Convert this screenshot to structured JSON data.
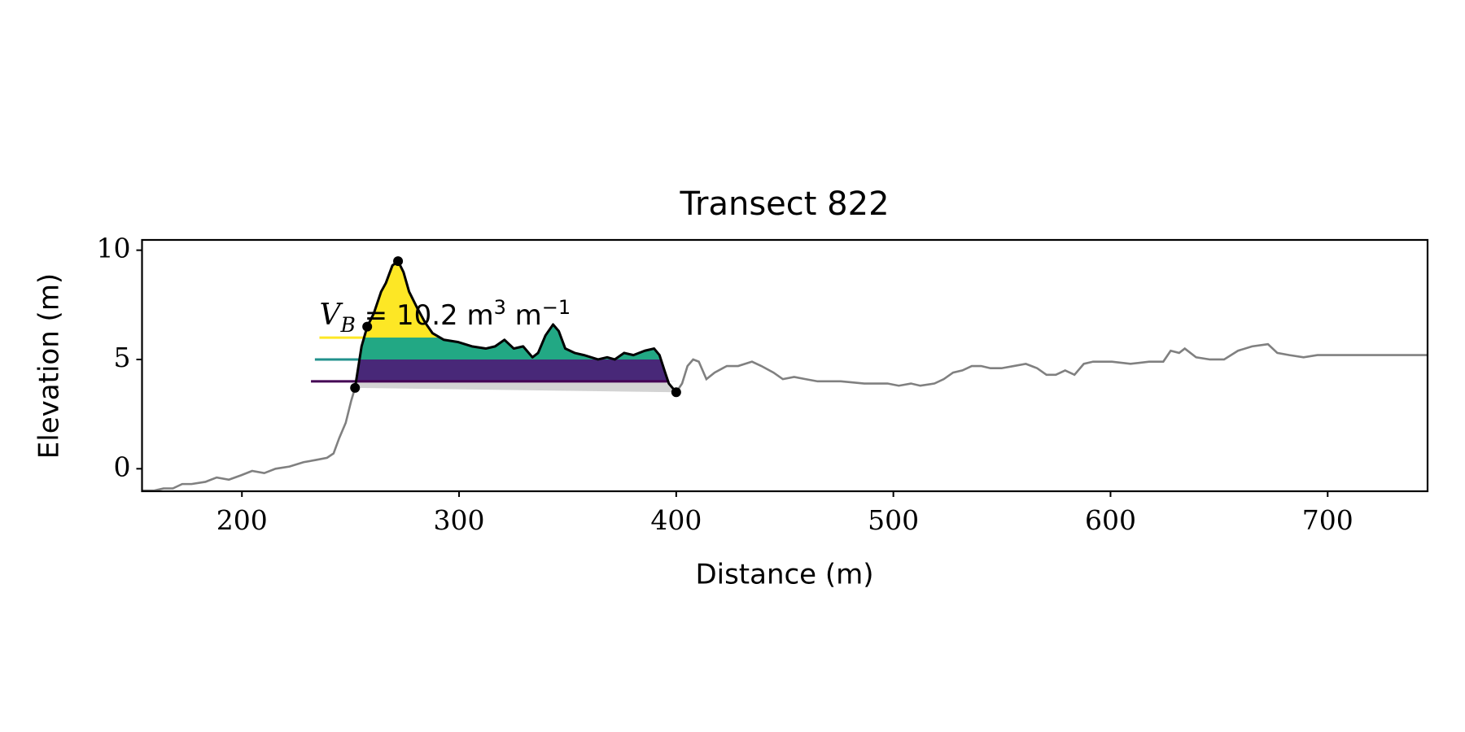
{
  "chart_data": {
    "type": "line",
    "title": "Transect 822",
    "xlabel": "Distance (m)",
    "ylabel": "Elevation (m)",
    "annotation": [
      "V",
      "B",
      " = 10.2 m",
      "3",
      " m",
      "−1"
    ],
    "xlim": [
      154,
      746
    ],
    "ylim": [
      -1.03,
      10.47
    ],
    "xticks": [
      200,
      300,
      400,
      500,
      600,
      700
    ],
    "yticks": [
      0,
      5,
      10
    ],
    "color": "#808080",
    "dune_color": "#000000",
    "base_color": "#d3d3d3",
    "x": [
      154,
      159.6,
      163.9,
      168.2,
      172.5,
      176.8,
      183.2,
      188.4,
      194,
      199.6,
      204.7,
      210.3,
      215.5,
      221.9,
      228.4,
      234,
      239.2,
      242.2,
      244.8,
      247.8,
      250.3,
      252.1,
      255.1,
      257.7,
      260.7,
      264.1,
      266.3,
      269.3,
      271.9,
      274.4,
      277,
      280.5,
      284.3,
      287.8,
      293,
      299.4,
      305.9,
      312.3,
      316.6,
      320.9,
      325.2,
      329.5,
      333.8,
      336.4,
      339.8,
      343.3,
      345.9,
      348.9,
      353.2,
      357.5,
      364,
      368.2,
      371.7,
      376,
      380.3,
      385.5,
      389.8,
      392.3,
      394.9,
      396.6,
      400,
      402.7,
      405.2,
      407.8,
      410.4,
      413.9,
      417.7,
      423.3,
      428.5,
      434.9,
      439.2,
      444.8,
      449.1,
      454.3,
      459.5,
      465.1,
      475.8,
      486.6,
      497.3,
      502.5,
      508.1,
      512.4,
      518.9,
      523.2,
      527.5,
      531.8,
      536.1,
      540.4,
      544.7,
      549.8,
      555.4,
      561,
      566.2,
      570.5,
      574.8,
      579.1,
      583.4,
      587.7,
      592,
      600.6,
      609.2,
      617.8,
      624.3,
      627.7,
      631.6,
      634.2,
      639.4,
      645.8,
      652.3,
      658.7,
      665.2,
      672.5,
      676.8,
      682.4,
      688.9,
      695.3,
      708.3,
      721.2,
      734.1,
      746
    ],
    "values": [
      -1.0,
      -1.0,
      -0.9,
      -0.9,
      -0.7,
      -0.7,
      -0.6,
      -0.4,
      -0.5,
      -0.3,
      -0.1,
      -0.2,
      0.0,
      0.1,
      0.3,
      0.4,
      0.5,
      0.7,
      1.4,
      2.1,
      3.1,
      3.7,
      5.6,
      6.5,
      7.1,
      8.1,
      8.5,
      9.3,
      9.5,
      9.0,
      8.1,
      7.4,
      6.7,
      6.2,
      5.9,
      5.8,
      5.6,
      5.5,
      5.6,
      5.9,
      5.5,
      5.6,
      5.1,
      5.3,
      6.1,
      6.6,
      6.3,
      5.5,
      5.3,
      5.2,
      5.0,
      5.1,
      5.0,
      5.3,
      5.2,
      5.4,
      5.5,
      5.2,
      4.4,
      3.9,
      3.5,
      3.9,
      4.7,
      5.0,
      4.9,
      4.1,
      4.4,
      4.7,
      4.7,
      4.9,
      4.7,
      4.4,
      4.1,
      4.2,
      4.1,
      4.0,
      4.0,
      3.9,
      3.9,
      3.8,
      3.9,
      3.8,
      3.9,
      4.1,
      4.4,
      4.5,
      4.7,
      4.7,
      4.6,
      4.6,
      4.7,
      4.8,
      4.6,
      4.3,
      4.3,
      4.5,
      4.3,
      4.8,
      4.9,
      4.9,
      4.8,
      4.9,
      4.9,
      5.4,
      5.3,
      5.5,
      5.1,
      5.0,
      5.0,
      5.4,
      5.6,
      5.7,
      5.3,
      5.2,
      5.1,
      5.2,
      5.2,
      5.2,
      5.2,
      5.2
    ],
    "markers": {
      "x": [
        252.1,
        257.7,
        271.9,
        400
      ],
      "y": [
        3.7,
        6.5,
        9.5,
        3.5
      ]
    },
    "levels": [
      {
        "value": 4,
        "color": "#440154",
        "fill": "#482878",
        "start": 231.8
      },
      {
        "value": 5,
        "color": "#21918c",
        "fill": "#22a884",
        "start": 233.6
      },
      {
        "value": 6,
        "color": "#fde725",
        "fill": "#fde725",
        "start": 235.7
      }
    ]
  }
}
